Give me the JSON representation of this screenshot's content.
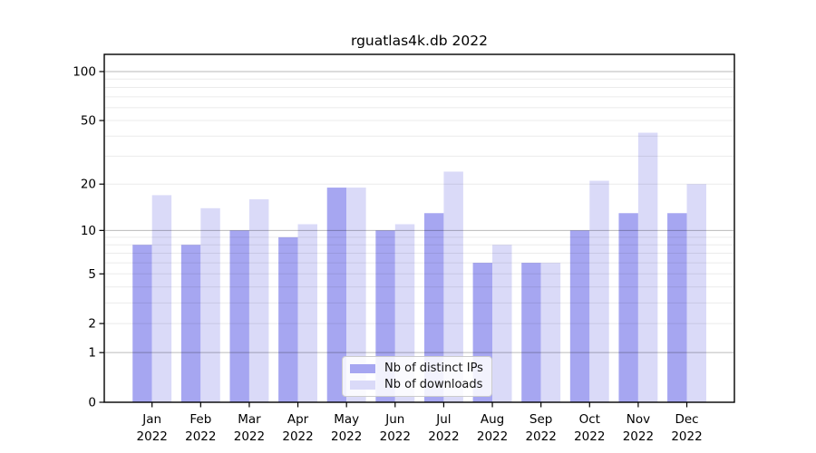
{
  "chart_data": {
    "type": "bar",
    "title": "rguatlas4k.db 2022",
    "year_label": "2022",
    "categories": [
      "Jan",
      "Feb",
      "Mar",
      "Apr",
      "May",
      "Jun",
      "Jul",
      "Aug",
      "Sep",
      "Oct",
      "Nov",
      "Dec"
    ],
    "series": [
      {
        "name": "Nb of distinct IPs",
        "color": "#a6a6f1",
        "values": [
          8,
          8,
          10,
          9,
          19,
          10,
          13,
          6,
          6,
          10,
          13,
          13
        ]
      },
      {
        "name": "Nb of downloads",
        "color": "#dadaf8",
        "values": [
          17,
          14,
          16,
          11,
          19,
          11,
          24,
          8,
          6,
          21,
          42,
          20
        ]
      }
    ],
    "yscale": "symlog",
    "ylim": [
      0,
      127
    ],
    "yticks": [
      100,
      50,
      20,
      10,
      5,
      2,
      1,
      0
    ],
    "major_gridlines": [
      1,
      10,
      100
    ],
    "minor_gridlines": [
      2,
      3,
      4,
      5,
      6,
      7,
      8,
      9,
      20,
      30,
      40,
      50,
      60,
      70,
      80,
      90
    ],
    "grid": true,
    "legend_position": "lower center",
    "colors": {
      "axis": "#000000",
      "major_grid": "rgba(0,0,0,0.27)",
      "minor_grid": "rgba(0,0,0,0.08)"
    }
  }
}
